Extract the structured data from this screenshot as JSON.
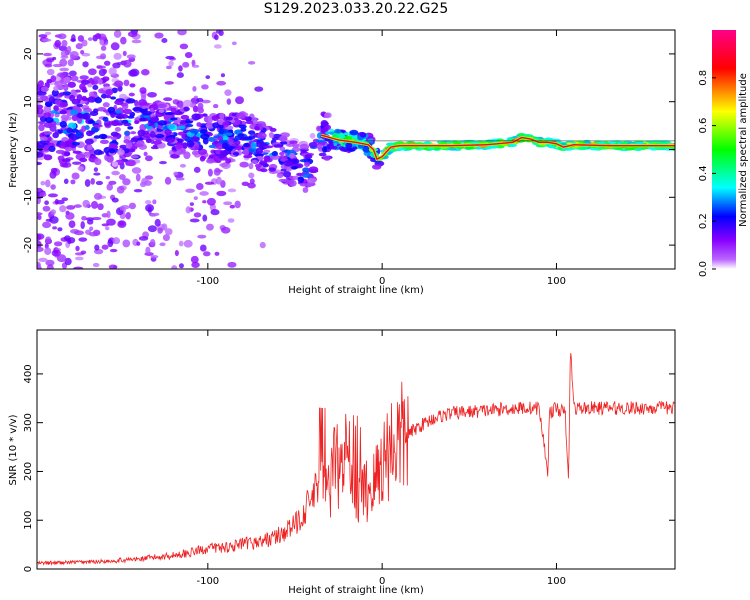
{
  "title": "S129.2023.033.20.22.G25",
  "chart_data": [
    {
      "type": "heatmap",
      "xlabel": "Height of straight line (km)",
      "ylabel": "Frequency (Hz)",
      "xlim": [
        -198,
        168
      ],
      "ylim": [
        -25,
        25
      ],
      "xticks": [
        -100,
        0,
        100
      ],
      "yticks": [
        -20,
        -10,
        0,
        10,
        20
      ],
      "grid": false,
      "colorbar": {
        "label": "Normalized spectral amplitude",
        "range": [
          0.0,
          1.0
        ],
        "ticks": [
          0.0,
          0.2,
          0.4,
          0.6,
          0.8
        ],
        "colors": [
          "#ffffff",
          "#8800ff",
          "#0000ff",
          "#00ffff",
          "#00ff00",
          "#ffff00",
          "#ff0000",
          "#ff0088"
        ]
      },
      "signal_center_line": {
        "x": [
          -198,
          -160,
          -130,
          -110,
          -95,
          -80,
          -65,
          -50,
          -42,
          -35,
          -25,
          -15,
          -8,
          -5,
          -3,
          0,
          5,
          10,
          20,
          40,
          60,
          75,
          80,
          85,
          90,
          95,
          100,
          104,
          110,
          130,
          168
        ],
        "y": [
          6,
          6,
          5,
          4,
          2,
          3,
          0,
          -3,
          -4,
          3,
          2,
          1.5,
          1,
          0,
          -2,
          -1.5,
          0.5,
          0.8,
          0.8,
          0.8,
          1,
          1.5,
          2.5,
          2.2,
          1.5,
          1.5,
          1.2,
          0.5,
          1,
          0.8,
          0.8
        ]
      }
    },
    {
      "type": "line",
      "xlabel": "Height of straight line (km)",
      "ylabel": "SNR (10 * v/v)",
      "xlim": [
        -198,
        168
      ],
      "ylim": [
        0,
        490
      ],
      "xticks": [
        -100,
        0,
        100
      ],
      "yticks": [
        0,
        100,
        200,
        300,
        400
      ],
      "grid": false,
      "series": [
        {
          "color": "#ee2222",
          "x": [
            -198,
            -180,
            -160,
            -140,
            -120,
            -110,
            -100,
            -90,
            -80,
            -70,
            -60,
            -50,
            -45,
            -40,
            -35,
            -30,
            -27,
            -25,
            -22,
            -20,
            -18,
            -15,
            -12,
            -10,
            -5,
            0,
            5,
            10,
            15,
            20,
            25,
            30,
            35,
            40,
            50,
            60,
            70,
            80,
            90,
            95,
            96,
            100,
            105,
            107,
            108,
            110,
            120,
            130,
            140,
            150,
            168
          ],
          "y": [
            10,
            12,
            14,
            18,
            25,
            30,
            38,
            40,
            45,
            50,
            60,
            80,
            105,
            130,
            160,
            175,
            230,
            200,
            190,
            210,
            170,
            180,
            150,
            160,
            170,
            220,
            255,
            265,
            275,
            290,
            300,
            310,
            315,
            320,
            322,
            325,
            328,
            330,
            330,
            200,
            320,
            330,
            320,
            170,
            460,
            330,
            330,
            330,
            330,
            330,
            330
          ]
        }
      ]
    }
  ]
}
